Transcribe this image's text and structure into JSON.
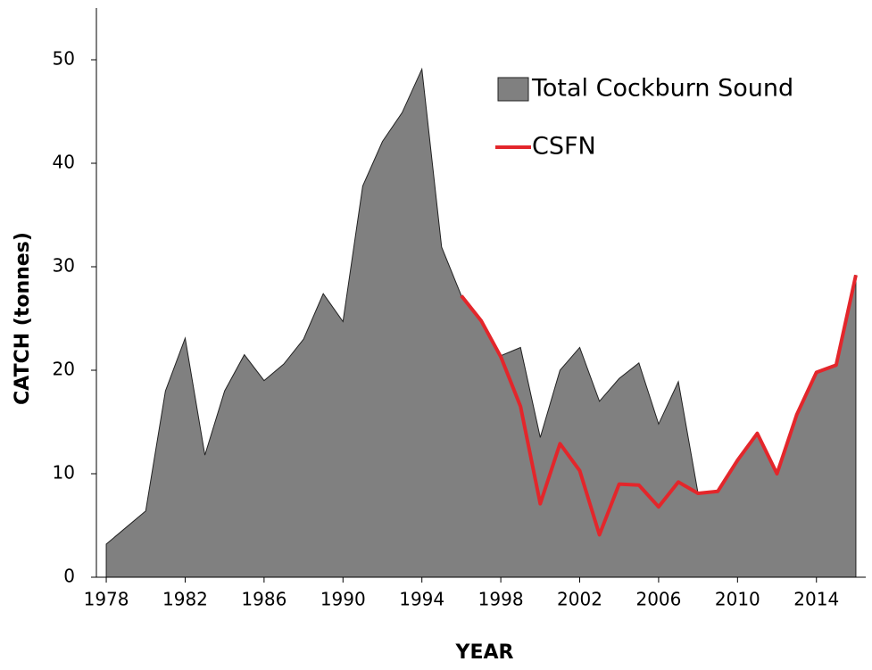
{
  "chart_data": {
    "type": "area_line",
    "xlabel": "YEAR",
    "ylabel": "CATCH (tonnes)",
    "x": [
      1978,
      1979,
      1980,
      1981,
      1982,
      1983,
      1984,
      1985,
      1986,
      1987,
      1988,
      1989,
      1990,
      1991,
      1992,
      1993,
      1994,
      1995,
      1996,
      1997,
      1998,
      1999,
      2000,
      2001,
      2002,
      2003,
      2004,
      2005,
      2006,
      2007,
      2008,
      2009,
      2010,
      2011,
      2012,
      2013,
      2014,
      2015,
      2016
    ],
    "series": [
      {
        "name": "Total Cockburn Sound",
        "kind": "area",
        "color": "#808080",
        "values": [
          3.2,
          4.8,
          6.4,
          18,
          23.1,
          11.8,
          18,
          21.5,
          19,
          20.6,
          23,
          27.4,
          24.7,
          37.8,
          42.1,
          44.9,
          49.1,
          31.9,
          27.2,
          24.8,
          21.4,
          22.2,
          13.5,
          20,
          22.2,
          17,
          19.2,
          20.7,
          14.8,
          18.9,
          8.1,
          8.3,
          11.3,
          13.9,
          10,
          15.7,
          19.8,
          20.5,
          29.2
        ]
      },
      {
        "name": "CSFN",
        "kind": "line",
        "color": "#e3262b",
        "values": [
          null,
          null,
          null,
          null,
          null,
          null,
          null,
          null,
          null,
          null,
          null,
          null,
          null,
          null,
          null,
          null,
          null,
          null,
          27.2,
          24.8,
          21.3,
          16.5,
          7.1,
          12.9,
          10.3,
          4.1,
          9.0,
          8.9,
          6.8,
          9.2,
          8.1,
          8.3,
          11.3,
          13.9,
          10,
          15.7,
          19.8,
          20.5,
          29.2
        ]
      }
    ],
    "xlim": [
      1977.5,
      2016.5
    ],
    "xticks": [
      1978,
      1982,
      1986,
      1990,
      1994,
      1998,
      2002,
      2006,
      2010,
      2014
    ],
    "ylim": [
      0,
      55
    ],
    "yticks": [
      0,
      10,
      20,
      30,
      40,
      50
    ]
  }
}
